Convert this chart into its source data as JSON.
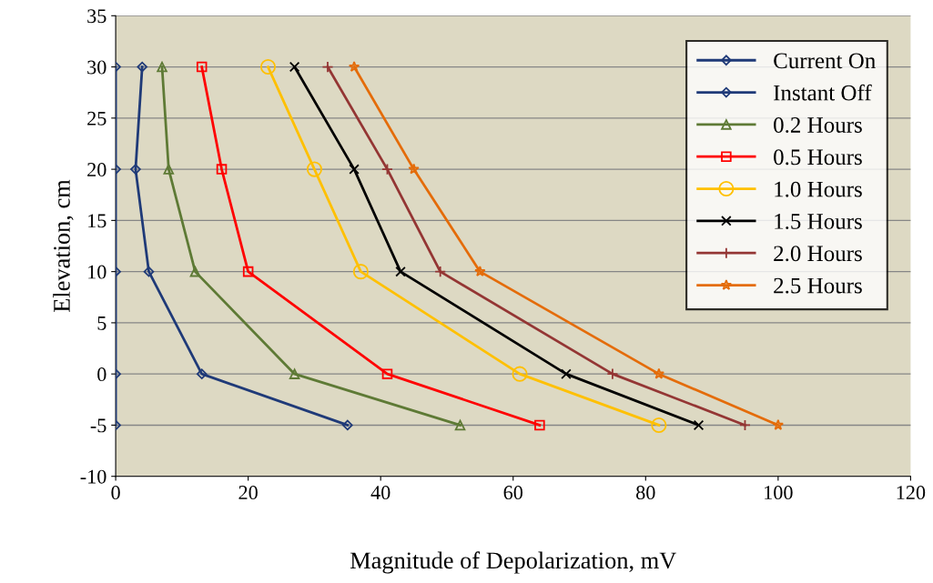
{
  "chart_data": {
    "type": "line",
    "xlabel": "Magnitude of Depolarization, mV",
    "ylabel": "Elevation, cm",
    "xlim": [
      0,
      120
    ],
    "xticks": [
      0,
      20,
      40,
      60,
      80,
      100,
      120
    ],
    "ylim": [
      -10,
      35
    ],
    "yticks": [
      -10,
      -5,
      0,
      5,
      10,
      15,
      20,
      25,
      30,
      35
    ],
    "grid": "y",
    "legend": "top right",
    "series": [
      {
        "name": "Current On",
        "color": "#1f3a78",
        "marker": "diamond",
        "x": [
          0,
          0,
          0,
          0,
          0
        ],
        "values": [
          30,
          20,
          10,
          0,
          -5
        ]
      },
      {
        "name": "Instant Off",
        "color": "#1f3a78",
        "marker": "diamond",
        "x": [
          4,
          3,
          5,
          13,
          35
        ],
        "values": [
          30,
          20,
          10,
          0,
          -5
        ]
      },
      {
        "name": "0.2 Hours",
        "color": "#5e7a35",
        "marker": "triangle",
        "x": [
          7,
          8,
          12,
          27,
          52
        ],
        "values": [
          30,
          20,
          10,
          0,
          -5
        ]
      },
      {
        "name": "0.5 Hours",
        "color": "#ff0000",
        "marker": "square",
        "x": [
          13,
          16,
          20,
          41,
          64
        ],
        "values": [
          30,
          20,
          10,
          0,
          -5
        ]
      },
      {
        "name": "1.0 Hours",
        "color": "#ffc000",
        "marker": "circle",
        "x": [
          23,
          30,
          37,
          61,
          82
        ],
        "values": [
          30,
          20,
          10,
          0,
          -5
        ]
      },
      {
        "name": "1.5 Hours",
        "color": "#000000",
        "marker": "cross",
        "x": [
          27,
          36,
          43,
          68,
          88
        ],
        "values": [
          30,
          20,
          10,
          0,
          -5
        ]
      },
      {
        "name": "2.0 Hours",
        "color": "#943634",
        "marker": "plus",
        "x": [
          32,
          41,
          49,
          75,
          95
        ],
        "values": [
          30,
          20,
          10,
          0,
          -5
        ]
      },
      {
        "name": "2.5 Hours",
        "color": "#e46c0a",
        "marker": "star",
        "x": [
          36,
          45,
          55,
          82,
          100
        ],
        "values": [
          30,
          20,
          10,
          0,
          -5
        ]
      }
    ]
  }
}
